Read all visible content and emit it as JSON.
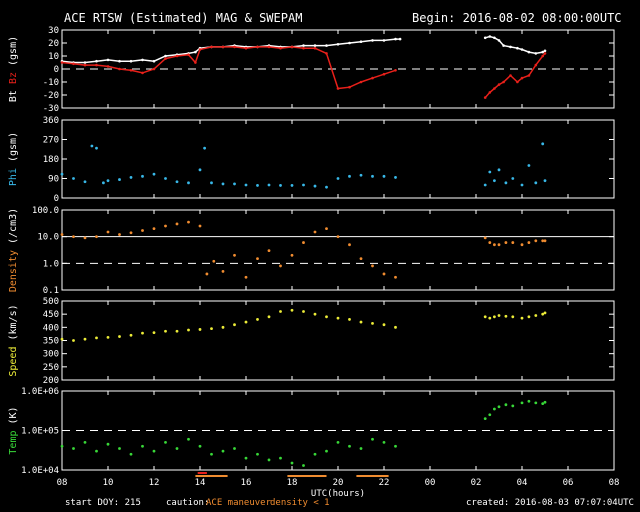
{
  "header": {
    "title": "ACE RTSW (Estimated) MAG & SWEPAM",
    "begin": "Begin: 2016-08-02 08:00:00UTC"
  },
  "footer": {
    "start_doy": "start DOY: 215",
    "caution_label": "caution:",
    "caution_maneuver": "ACE maneuver",
    "caution_density": "density < 1",
    "created": "created: 2016-08-03 07:07:04UTC"
  },
  "colors": {
    "bt": "#ffffff",
    "bz": "#e8201a",
    "phi": "#38b8e8",
    "density": "#f08c30",
    "speed": "#ecec38",
    "temp": "#38d838",
    "maneuver": "#e8201a",
    "lowdensity": "#f08c30"
  },
  "chart_data": [
    {
      "type": "line",
      "ylabel_parts": [
        "Bt",
        "Bz",
        "(gsm)"
      ],
      "ylim": [
        -30,
        30
      ],
      "yticks": [
        "30",
        "20",
        "10",
        "0",
        "-10",
        "-20",
        "-30"
      ],
      "ytick_values": [
        30,
        20,
        10,
        0,
        -10,
        -20,
        -30
      ],
      "dashed_at": [
        0
      ],
      "series": [
        {
          "name": "Bt",
          "key": "bt",
          "x": [
            8.0,
            8.5,
            9.0,
            9.5,
            10.0,
            10.5,
            11.0,
            11.5,
            12.0,
            12.5,
            13.0,
            13.5,
            13.8,
            14.0,
            14.5,
            15.0,
            15.5,
            16.0,
            16.5,
            17.0,
            17.5,
            18.0,
            18.5,
            19.0,
            19.5,
            20.0,
            20.5,
            21.0,
            21.5,
            22.0,
            22.5,
            22.7,
            26.4,
            26.6,
            26.8,
            27.0,
            27.2,
            27.5,
            27.8,
            28.0,
            28.3,
            28.6,
            28.9,
            29.0
          ],
          "y": [
            6,
            5,
            5,
            6,
            7,
            6,
            6,
            7,
            6,
            10,
            11,
            12,
            13,
            16,
            17,
            17,
            18,
            17,
            17,
            18,
            17,
            17,
            18,
            18,
            18,
            19,
            20,
            21,
            22,
            22,
            23,
            23,
            24,
            25,
            24,
            22,
            18,
            17,
            16,
            15,
            13,
            12,
            13,
            14
          ]
        },
        {
          "name": "Bz",
          "key": "bz",
          "x": [
            8.0,
            8.5,
            9.0,
            9.5,
            10.0,
            10.5,
            11.0,
            11.5,
            12.0,
            12.5,
            13.0,
            13.5,
            13.8,
            14.0,
            14.5,
            15.0,
            15.5,
            16.0,
            16.5,
            17.0,
            17.5,
            18.0,
            18.5,
            19.0,
            19.5,
            20.0,
            20.5,
            21.0,
            21.5,
            22.0,
            22.5,
            26.4,
            26.6,
            26.8,
            27.0,
            27.2,
            27.5,
            27.8,
            28.0,
            28.3,
            28.6,
            28.9,
            29.0
          ],
          "y": [
            5,
            4,
            3,
            3,
            2,
            0,
            -1,
            -3,
            0,
            8,
            10,
            11,
            5,
            15,
            17,
            17,
            17,
            16,
            17,
            17,
            16,
            17,
            16,
            16,
            12,
            -15,
            -14,
            -10,
            -7,
            -4,
            -1,
            -22,
            -18,
            -15,
            -12,
            -10,
            -5,
            -10,
            -7,
            -5,
            3,
            10,
            12
          ]
        }
      ]
    },
    {
      "type": "scatter",
      "ylabel_parts": [
        "Phi",
        "(gsm)"
      ],
      "ylim": [
        0,
        360
      ],
      "yticks": [
        "360",
        "270",
        "180",
        "90",
        "0"
      ],
      "ytick_values": [
        360,
        270,
        180,
        90,
        0
      ],
      "dashed_at": [],
      "series": [
        {
          "key": "phi",
          "x": [
            8.0,
            8.5,
            9.0,
            9.3,
            9.5,
            9.8,
            10.0,
            10.5,
            11.0,
            11.5,
            12.0,
            12.5,
            13.0,
            13.5,
            14.0,
            14.2,
            14.5,
            15.0,
            15.5,
            16.0,
            16.5,
            17.0,
            17.5,
            18.0,
            18.5,
            19.0,
            19.5,
            20.0,
            20.5,
            21.0,
            21.5,
            22.0,
            22.5,
            26.4,
            26.6,
            26.8,
            27.0,
            27.3,
            27.6,
            28.0,
            28.3,
            28.6,
            28.9,
            29.0
          ],
          "y": [
            110,
            90,
            75,
            240,
            230,
            70,
            80,
            85,
            95,
            100,
            110,
            90,
            75,
            70,
            130,
            230,
            70,
            65,
            65,
            60,
            58,
            60,
            58,
            58,
            60,
            55,
            50,
            90,
            100,
            105,
            100,
            100,
            95,
            60,
            120,
            80,
            130,
            70,
            90,
            60,
            150,
            70,
            250,
            80
          ]
        }
      ]
    },
    {
      "type": "scatter",
      "ylabel_parts": [
        "Density",
        "(/cm3)"
      ],
      "ylim": [
        0.1,
        100
      ],
      "log": true,
      "yticks": [
        "100.0",
        "10.0",
        "1.0",
        "0.1"
      ],
      "ytick_values": [
        100,
        10,
        1,
        0.1
      ],
      "solid_at": [
        10
      ],
      "dashed_at": [
        1
      ],
      "series": [
        {
          "key": "density",
          "x": [
            8.0,
            8.5,
            9.0,
            9.5,
            10.0,
            10.5,
            11.0,
            11.5,
            12.0,
            12.5,
            13.0,
            13.5,
            14.0,
            14.3,
            14.6,
            15.0,
            15.5,
            16.0,
            16.5,
            17.0,
            17.5,
            18.0,
            18.5,
            19.0,
            19.5,
            20.0,
            20.5,
            21.0,
            21.5,
            22.0,
            22.5,
            26.4,
            26.6,
            26.8,
            27.0,
            27.3,
            27.6,
            28.0,
            28.3,
            28.6,
            28.9,
            29.0
          ],
          "y": [
            12,
            10,
            9,
            10,
            15,
            12,
            14,
            17,
            20,
            25,
            30,
            35,
            25,
            0.4,
            1.2,
            0.5,
            2,
            0.3,
            1.5,
            3,
            0.8,
            2,
            6,
            15,
            20,
            10,
            5,
            1.5,
            0.8,
            0.4,
            0.3,
            9,
            6,
            5,
            5,
            6,
            6,
            5,
            6,
            7,
            7,
            7
          ]
        }
      ]
    },
    {
      "type": "scatter",
      "ylabel_parts": [
        "Speed",
        "(km/s)"
      ],
      "ylim": [
        200,
        500
      ],
      "yticks": [
        "500",
        "450",
        "400",
        "350",
        "300",
        "250",
        "200"
      ],
      "ytick_values": [
        500,
        450,
        400,
        350,
        300,
        250,
        200
      ],
      "dashed_at": [],
      "series": [
        {
          "key": "speed",
          "x": [
            8.0,
            8.5,
            9.0,
            9.5,
            10.0,
            10.5,
            11.0,
            11.5,
            12.0,
            12.5,
            13.0,
            13.5,
            14.0,
            14.5,
            15.0,
            15.5,
            16.0,
            16.5,
            17.0,
            17.5,
            18.0,
            18.5,
            19.0,
            19.5,
            20.0,
            20.5,
            21.0,
            21.5,
            22.0,
            22.5,
            26.4,
            26.6,
            26.8,
            27.0,
            27.3,
            27.6,
            28.0,
            28.3,
            28.6,
            28.9,
            29.0
          ],
          "y": [
            355,
            350,
            355,
            360,
            362,
            365,
            370,
            378,
            380,
            385,
            385,
            390,
            392,
            395,
            400,
            410,
            420,
            430,
            440,
            460,
            465,
            460,
            450,
            440,
            435,
            430,
            420,
            415,
            410,
            400,
            440,
            435,
            440,
            445,
            442,
            440,
            435,
            440,
            445,
            450,
            455
          ]
        }
      ]
    },
    {
      "type": "scatter",
      "ylabel_parts": [
        "Temp",
        "(K)"
      ],
      "ylim": [
        10000,
        1000000
      ],
      "log": true,
      "yticks": [
        "1.0E+06",
        "1.0E+05",
        "1.0E+04"
      ],
      "ytick_values": [
        1000000,
        100000,
        10000
      ],
      "dashed_at": [
        100000
      ],
      "series": [
        {
          "key": "temp",
          "x": [
            8.0,
            8.5,
            9.0,
            9.5,
            10.0,
            10.5,
            11.0,
            11.5,
            12.0,
            12.5,
            13.0,
            13.5,
            14.0,
            14.5,
            15.0,
            15.5,
            16.0,
            16.5,
            17.0,
            17.5,
            18.0,
            18.5,
            19.0,
            19.5,
            20.0,
            20.5,
            21.0,
            21.5,
            22.0,
            22.5,
            26.4,
            26.6,
            26.8,
            27.0,
            27.3,
            27.6,
            28.0,
            28.3,
            28.6,
            28.9,
            29.0
          ],
          "y": [
            40000,
            35000,
            50000,
            30000,
            45000,
            35000,
            25000,
            40000,
            30000,
            50000,
            35000,
            60000,
            40000,
            25000,
            30000,
            35000,
            20000,
            25000,
            18000,
            20000,
            15000,
            13000,
            25000,
            30000,
            50000,
            40000,
            35000,
            60000,
            50000,
            40000,
            200000,
            250000,
            350000,
            400000,
            450000,
            420000,
            500000,
            550000,
            500000,
            480000,
            520000
          ]
        }
      ]
    }
  ],
  "xaxis": {
    "range": [
      8,
      32
    ],
    "ticks": [
      "08",
      "10",
      "12",
      "14",
      "16",
      "18",
      "20",
      "22",
      "00",
      "02",
      "04",
      "06",
      "08"
    ],
    "tick_values": [
      8,
      10,
      12,
      14,
      16,
      18,
      20,
      22,
      24,
      26,
      28,
      30,
      32
    ],
    "label": "UTC(hours)"
  },
  "flags": {
    "maneuver": [
      [
        13.9,
        14.3
      ]
    ],
    "low_density": [
      [
        13.8,
        15.2
      ],
      [
        17.8,
        19.5
      ],
      [
        20.8,
        22.2
      ]
    ]
  }
}
